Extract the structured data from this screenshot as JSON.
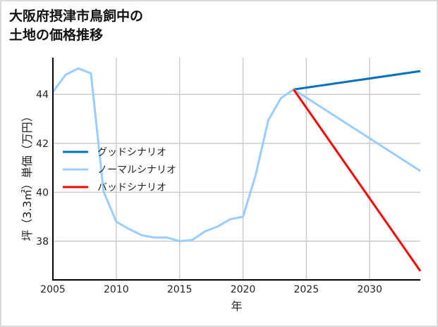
{
  "chart_data": {
    "type": "line",
    "title_lines": [
      "大阪府摂津市鳥飼中の",
      "土地の価格推移"
    ],
    "xlabel": "年",
    "ylabel": "坪（3.3㎡）単価（万円）",
    "xlim": [
      2005,
      2034
    ],
    "ylim": [
      36.42,
      45.5
    ],
    "xticks": [
      2005,
      2010,
      2015,
      2020,
      2025,
      2030
    ],
    "yticks": [
      38,
      40,
      42,
      44
    ],
    "grid": true,
    "legend_position": "center-left",
    "series": [
      {
        "name": "グッドシナリオ",
        "color": "#0070c0",
        "x": [
          2024,
          2034
        ],
        "y": [
          44.2,
          44.95
        ]
      },
      {
        "name": "ノーマルシナリオ",
        "color": "#99ccff",
        "x": [
          2005,
          2006,
          2007,
          2008,
          2009,
          2010,
          2011,
          2012,
          2013,
          2014,
          2015,
          2016,
          2017,
          2018,
          2019,
          2020,
          2021,
          2022,
          2023,
          2024,
          2034
        ],
        "y": [
          44.1,
          44.8,
          45.06,
          44.86,
          40.03,
          38.8,
          38.5,
          38.25,
          38.15,
          38.15,
          38.0,
          38.05,
          38.4,
          38.6,
          38.9,
          39.0,
          40.7,
          42.95,
          43.85,
          44.2,
          40.87
        ]
      },
      {
        "name": "バッドシナリオ",
        "color": "#ff0000",
        "x": [
          2024,
          2034
        ],
        "y": [
          44.2,
          36.78
        ]
      }
    ]
  }
}
